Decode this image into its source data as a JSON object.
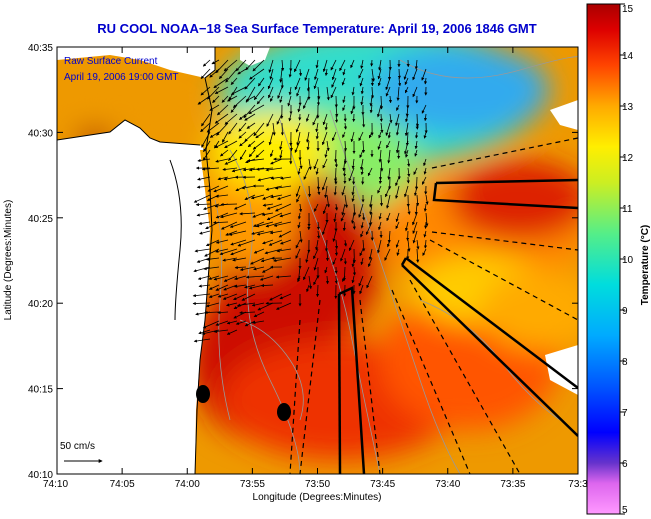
{
  "title": "RU COOL  NOAA−18  Sea Surface Temperature:  April 19, 2006 1846 GMT",
  "overlay": {
    "line1": "Raw Surface Current",
    "line2": "April 19, 2006 19:00 GMT"
  },
  "scale_label": "50 cm/s",
  "x_axis": {
    "label": "Longitude (Degrees:Minutes)",
    "ticks": [
      "74:10",
      "74:05",
      "74:00",
      "73:55",
      "73:50",
      "73:45",
      "73:40",
      "73:35",
      "73:3"
    ]
  },
  "y_axis": {
    "label": "Latitude (Degrees:Minutes)",
    "ticks": [
      "40:35",
      "40:30",
      "40:25",
      "40:20",
      "40:15",
      "40:10"
    ]
  },
  "colorbar": {
    "label": "Temperature (°C)",
    "ticks": [
      "15",
      "14",
      "13",
      "12",
      "11",
      "10",
      "9",
      "8",
      "7",
      "6",
      "5"
    ],
    "range": [
      5,
      15
    ],
    "colors": [
      "#ff99ff",
      "#cc55ee",
      "#6633cc",
      "#0000ff",
      "#0066ff",
      "#00aaff",
      "#00dddd",
      "#55ee88",
      "#aaee33",
      "#ffff00",
      "#ffcc00",
      "#ff8800",
      "#ff3300",
      "#dd0000",
      "#990000"
    ]
  },
  "colors": {
    "title": "#0000cc",
    "land": "#ffffff",
    "frame": "#000000"
  }
}
